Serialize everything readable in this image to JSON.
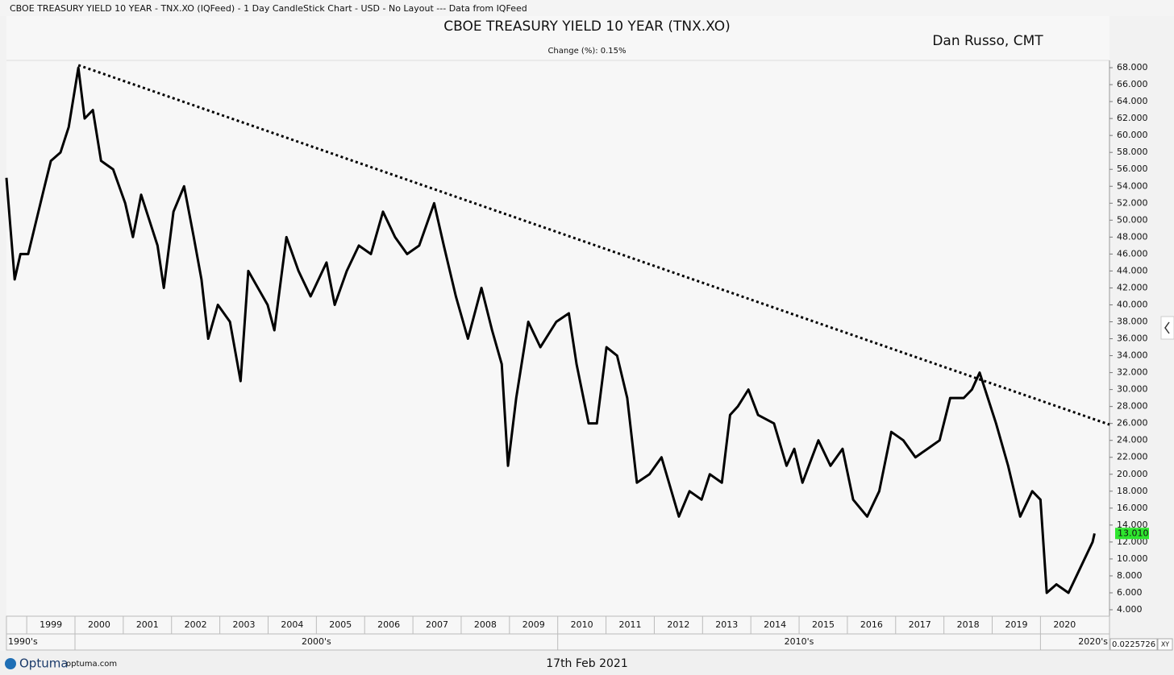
{
  "window_title": "CBOE TREASURY YIELD 10 YEAR - TNX.XO (IQFeed) - 1 Day CandleStick Chart - USD - No Layout --- Data from IQFeed",
  "footer": {
    "brand": "Optuma",
    "site": "optuma.com",
    "date": "17th Feb 2021",
    "cursor_value": "0.0225726",
    "mode": "XY"
  },
  "chart_data": {
    "type": "line",
    "title": "CBOE TREASURY YIELD 10 YEAR (TNX.XO)",
    "subtitle": "Change (%): 0.15%",
    "annotation": "Dan Russo, CMT",
    "xlim": [
      1998.58,
      2021.43
    ],
    "ylim": [
      3.24,
      68.86
    ],
    "xticks": [
      1999,
      2000,
      2001,
      2002,
      2003,
      2004,
      2005,
      2006,
      2007,
      2008,
      2009,
      2010,
      2011,
      2012,
      2013,
      2014,
      2015,
      2016,
      2017,
      2018,
      2019,
      2020
    ],
    "decades": [
      {
        "value": 1990,
        "label": "1990's"
      },
      {
        "value": 2000,
        "label": "2000's"
      },
      {
        "value": 2010,
        "label": "2010's"
      },
      {
        "value": 2020,
        "label": "2020's"
      }
    ],
    "yticks": [
      {
        "value": 4,
        "label": "4.000"
      },
      {
        "value": 6,
        "label": "6.000"
      },
      {
        "value": 8,
        "label": "8.000"
      },
      {
        "value": 10,
        "label": "10.000"
      },
      {
        "value": 12,
        "label": "12.000"
      },
      {
        "value": 14,
        "label": "14.000"
      },
      {
        "value": 16,
        "label": "16.000"
      },
      {
        "value": 18,
        "label": "18.000"
      },
      {
        "value": 20,
        "label": "20.000"
      },
      {
        "value": 22,
        "label": "22.000"
      },
      {
        "value": 24,
        "label": "24.000"
      },
      {
        "value": 26,
        "label": "26.000"
      },
      {
        "value": 28,
        "label": "28.000"
      },
      {
        "value": 30,
        "label": "30.000"
      },
      {
        "value": 32,
        "label": "32.000"
      },
      {
        "value": 34,
        "label": "34.000"
      },
      {
        "value": 36,
        "label": "36.000"
      },
      {
        "value": 38,
        "label": "38.000"
      },
      {
        "value": 40,
        "label": "40.000"
      },
      {
        "value": 42,
        "label": "42.000"
      },
      {
        "value": 44,
        "label": "44.000"
      },
      {
        "value": 46,
        "label": "46.000"
      },
      {
        "value": 48,
        "label": "48.000"
      },
      {
        "value": 50,
        "label": "50.000"
      },
      {
        "value": 52,
        "label": "52.000"
      },
      {
        "value": 54,
        "label": "54.000"
      },
      {
        "value": 56,
        "label": "56.000"
      },
      {
        "value": 58,
        "label": "58.000"
      },
      {
        "value": 60,
        "label": "60.000"
      },
      {
        "value": 62,
        "label": "62.000"
      },
      {
        "value": 64,
        "label": "64.000"
      },
      {
        "value": 66,
        "label": "66.000"
      },
      {
        "value": 68,
        "label": "68.000"
      }
    ],
    "x": [
      1998.58,
      1998.65,
      1998.75,
      1998.87,
      1999.03,
      1999.2,
      1999.37,
      1999.5,
      1999.7,
      1999.87,
      2000.07,
      2000.2,
      2000.37,
      2000.54,
      2000.79,
      2001.04,
      2001.2,
      2001.37,
      2001.54,
      2001.71,
      2001.84,
      2002.04,
      2002.26,
      2002.46,
      2002.62,
      2002.76,
      2002.96,
      2003.21,
      2003.43,
      2003.59,
      2003.79,
      2003.99,
      2004.13,
      2004.38,
      2004.63,
      2004.88,
      2005.21,
      2005.38,
      2005.63,
      2005.88,
      2006.13,
      2006.38,
      2006.63,
      2006.88,
      2007.13,
      2007.44,
      2007.64,
      2007.89,
      2008.14,
      2008.42,
      2008.64,
      2008.84,
      2008.97,
      2009.14,
      2009.39,
      2009.64,
      2009.97,
      2010.23,
      2010.39,
      2010.64,
      2010.81,
      2011.01,
      2011.23,
      2011.44,
      2011.64,
      2011.9,
      2012.15,
      2012.51,
      2012.73,
      2012.98,
      2013.15,
      2013.4,
      2013.57,
      2013.73,
      2013.95,
      2014.15,
      2014.48,
      2014.74,
      2014.9,
      2015.07,
      2015.4,
      2015.65,
      2015.9,
      2016.12,
      2016.41,
      2016.66,
      2016.91,
      2017.16,
      2017.41,
      2017.66,
      2017.91,
      2018.13,
      2018.41,
      2018.58,
      2018.74,
      2018.91,
      2019.08,
      2019.33,
      2019.58,
      2019.83,
      2020.0,
      2020.13,
      2020.33,
      2020.58,
      2020.83,
      2021.08,
      2021.12
    ],
    "series": [
      {
        "color": "#000000",
        "values": [
          55,
          50,
          43,
          46,
          46,
          50,
          54,
          57,
          58,
          61,
          68,
          62,
          63,
          57,
          56,
          52,
          48,
          53,
          50,
          47,
          42,
          51,
          54,
          48,
          43,
          36,
          40,
          38,
          31,
          44,
          42,
          40,
          37,
          48,
          44,
          41,
          45,
          40,
          44,
          47,
          46,
          51,
          48,
          46,
          47,
          52,
          47,
          41,
          36,
          42,
          37,
          33,
          21,
          29,
          38,
          35,
          38,
          39,
          33,
          26,
          26,
          35,
          34,
          29,
          19,
          20,
          22,
          15,
          18,
          17,
          20,
          19,
          27,
          28,
          30,
          27,
          26,
          21,
          23,
          19,
          24,
          21,
          23,
          17,
          15,
          18,
          25,
          24,
          22,
          23,
          24,
          29,
          29,
          30,
          32,
          29,
          26,
          21,
          15,
          18,
          17,
          6,
          7,
          6,
          9,
          12,
          13.01
        ]
      }
    ],
    "last_label": "13.010",
    "last_label_color": "#2ee52e",
    "trendline": {
      "x": [
        2000.07,
        2021.43
      ],
      "y": [
        68.3,
        25.86
      ]
    }
  }
}
